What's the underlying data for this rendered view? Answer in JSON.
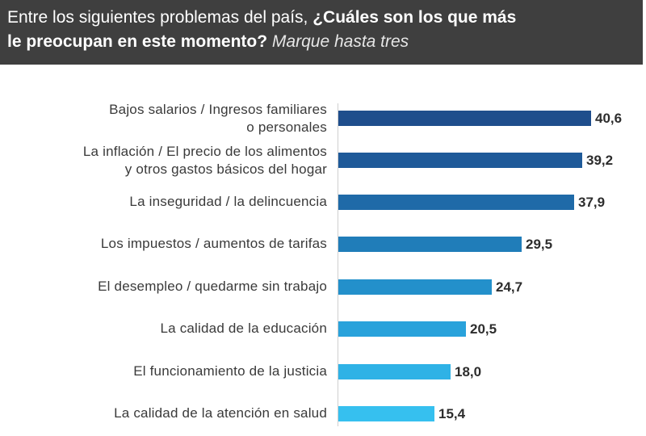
{
  "header": {
    "line1_normal": "Entre los siguientes problemas del país, ",
    "line1_bold": "¿Cuáles son los que más",
    "line2_bold": "le preocupan en este momento?",
    "line2_italic": "Marque hasta tres"
  },
  "chart_data": {
    "type": "bar",
    "orientation": "horizontal",
    "title": "Entre los siguientes problemas del país, ¿Cuáles son los que más le preocupan en este momento? Marque hasta tres",
    "categories": [
      [
        "Bajos salarios / Ingresos familiares",
        "o personales"
      ],
      [
        "La inflación / El precio de los alimentos",
        "y otros gastos básicos del hogar"
      ],
      [
        "La inseguridad / la delincuencia"
      ],
      [
        "Los impuestos / aumentos de tarifas"
      ],
      [
        "El desempleo / quedarme sin trabajo"
      ],
      [
        "La calidad de la educación"
      ],
      [
        "El funcionamiento de la justicia"
      ],
      [
        "La calidad de la atención en salud"
      ]
    ],
    "values": [
      40.6,
      39.2,
      37.9,
      29.5,
      24.7,
      20.5,
      18.0,
      15.4
    ],
    "value_labels": [
      "40,6",
      "39,2",
      "37,9",
      "29,5",
      "24,7",
      "20,5",
      "18,0",
      "15,4"
    ],
    "colors": [
      "#1f4e8c",
      "#1f5a99",
      "#1f6aa8",
      "#207db9",
      "#2390cb",
      "#29a2db",
      "#2fb2e6",
      "#36c0ef"
    ],
    "xlim": [
      0,
      44
    ]
  }
}
